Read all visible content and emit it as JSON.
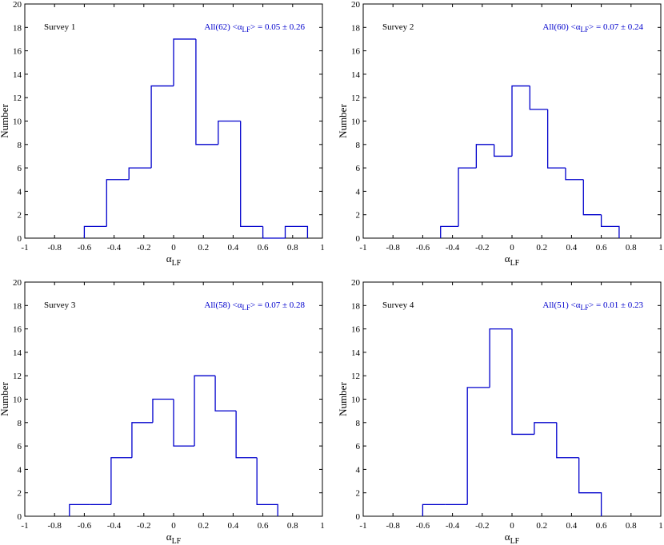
{
  "figure": {
    "colors": {
      "histogram": "#0000cc",
      "annotation": "#0000cc",
      "axis": "#000000"
    }
  },
  "chart_data": [
    {
      "type": "bar",
      "title": "Survey 1",
      "annotation": {
        "all_label": "All(62)",
        "mean_symbol": "α",
        "mean_subscript": "LF",
        "mean_value": "= 0.05 ± 0.26"
      },
      "xlabel_symbol": "α",
      "xlabel_subscript": "LF",
      "ylabel": "Number",
      "xlim": [
        -1,
        1
      ],
      "ylim": [
        0,
        20
      ],
      "xticks": [
        -1,
        -0.8,
        -0.6,
        -0.4,
        -0.2,
        0,
        0.2,
        0.4,
        0.6,
        0.8,
        1
      ],
      "xtick_labels": [
        "-1",
        "-0.8",
        "-0.6",
        "-0.4",
        "-0.2",
        "0",
        "0.2",
        "0.4",
        "0.6",
        "0.8",
        "1"
      ],
      "yticks": [
        0,
        2,
        4,
        6,
        8,
        10,
        12,
        14,
        16,
        18,
        20
      ],
      "ytick_labels": [
        "0",
        "2",
        "4",
        "6",
        "8",
        "10",
        "12",
        "14",
        "16",
        "18",
        "20"
      ],
      "bin_edges": [
        -0.6,
        -0.45,
        -0.3,
        -0.15,
        0.0,
        0.15,
        0.3,
        0.45,
        0.6,
        0.75,
        0.9
      ],
      "values": [
        1,
        5,
        6,
        13,
        17,
        8,
        10,
        1,
        0,
        1
      ]
    },
    {
      "type": "bar",
      "title": "Survey 2",
      "annotation": {
        "all_label": "All(60)",
        "mean_symbol": "α",
        "mean_subscript": "LF",
        "mean_value": "= 0.07 ± 0.24"
      },
      "xlabel_symbol": "α",
      "xlabel_subscript": "LF",
      "ylabel": "Number",
      "xlim": [
        -1,
        1
      ],
      "ylim": [
        0,
        20
      ],
      "xticks": [
        -1,
        -0.8,
        -0.6,
        -0.4,
        -0.2,
        0,
        0.2,
        0.4,
        0.6,
        0.8,
        1
      ],
      "xtick_labels": [
        "-1",
        "-0.8",
        "-0.6",
        "-0.4",
        "-0.2",
        "0",
        "0.2",
        "0.4",
        "0.6",
        "0.8",
        "1"
      ],
      "yticks": [
        0,
        2,
        4,
        6,
        8,
        10,
        12,
        14,
        16,
        18,
        20
      ],
      "ytick_labels": [
        "0",
        "2",
        "4",
        "6",
        "8",
        "10",
        "12",
        "14",
        "16",
        "18",
        "20"
      ],
      "bin_edges": [
        -0.48,
        -0.36,
        -0.24,
        -0.12,
        0.0,
        0.12,
        0.24,
        0.36,
        0.48,
        0.6,
        0.72
      ],
      "values": [
        1,
        6,
        8,
        7,
        13,
        11,
        6,
        5,
        2,
        1
      ]
    },
    {
      "type": "bar",
      "title": "Survey 3",
      "annotation": {
        "all_label": "All(58)",
        "mean_symbol": "α",
        "mean_subscript": "LF",
        "mean_value": "= 0.07 ± 0.28"
      },
      "xlabel_symbol": "α",
      "xlabel_subscript": "LF",
      "ylabel": "Number",
      "xlim": [
        -1,
        1
      ],
      "ylim": [
        0,
        20
      ],
      "xticks": [
        -1,
        -0.8,
        -0.6,
        -0.4,
        -0.2,
        0,
        0.2,
        0.4,
        0.6,
        0.8,
        1
      ],
      "xtick_labels": [
        "-1",
        "-0.8",
        "-0.6",
        "-0.4",
        "-0.2",
        "0",
        "0.2",
        "0.4",
        "0.6",
        "0.8",
        "1"
      ],
      "yticks": [
        0,
        2,
        4,
        6,
        8,
        10,
        12,
        14,
        16,
        18,
        20
      ],
      "ytick_labels": [
        "0",
        "2",
        "4",
        "6",
        "8",
        "10",
        "12",
        "14",
        "16",
        "18",
        "20"
      ],
      "bin_edges": [
        -0.7,
        -0.56,
        -0.42,
        -0.28,
        -0.14,
        0.0,
        0.14,
        0.28,
        0.42,
        0.56,
        0.7
      ],
      "values": [
        1,
        1,
        5,
        8,
        10,
        6,
        12,
        9,
        5,
        1
      ]
    },
    {
      "type": "bar",
      "title": "Survey 4",
      "annotation": {
        "all_label": "All(51)",
        "mean_symbol": "α",
        "mean_subscript": "LF",
        "mean_value": "= 0.01 ± 0.23"
      },
      "xlabel_symbol": "α",
      "xlabel_subscript": "LF",
      "ylabel": "Number",
      "xlim": [
        -1,
        1
      ],
      "ylim": [
        0,
        20
      ],
      "xticks": [
        -1,
        -0.8,
        -0.6,
        -0.4,
        -0.2,
        0,
        0.2,
        0.4,
        0.6,
        0.8,
        1
      ],
      "xtick_labels": [
        "-1",
        "-0.8",
        "-0.6",
        "-0.4",
        "-0.2",
        "0",
        "0.2",
        "0.4",
        "0.6",
        "0.8",
        "1"
      ],
      "yticks": [
        0,
        2,
        4,
        6,
        8,
        10,
        12,
        14,
        16,
        18,
        20
      ],
      "ytick_labels": [
        "0",
        "2",
        "4",
        "6",
        "8",
        "10",
        "12",
        "14",
        "16",
        "18",
        "20"
      ],
      "bin_edges": [
        -0.6,
        -0.45,
        -0.3,
        -0.15,
        0.0,
        0.15,
        0.3,
        0.45,
        0.6
      ],
      "values": [
        1,
        1,
        11,
        16,
        7,
        8,
        5,
        2
      ]
    }
  ]
}
